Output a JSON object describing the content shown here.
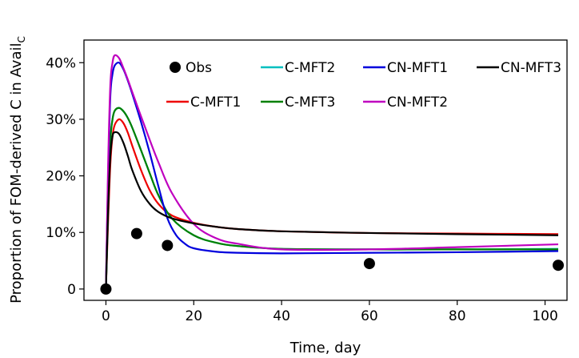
{
  "chart_data": {
    "type": "line",
    "xlabel": "Time, day",
    "ylabel": "Proportion of FOM-derived C in Avail",
    "ylabel_sub": "C",
    "xlim": [
      -5,
      105
    ],
    "ylim": [
      -2,
      44
    ],
    "xticks": [
      0,
      20,
      40,
      60,
      80,
      100
    ],
    "xtick_labels": [
      "0",
      "20",
      "40",
      "60",
      "80",
      "100"
    ],
    "yticks": [
      0,
      10,
      20,
      30,
      40
    ],
    "ytick_labels": [
      "0",
      "10%",
      "20%",
      "30%",
      "40%"
    ],
    "grid": false,
    "legend_position": "top-right",
    "observations": {
      "name": "Obs",
      "color": "#000000",
      "points": [
        [
          0,
          0
        ],
        [
          7,
          9.8
        ],
        [
          14,
          7.7
        ],
        [
          60,
          4.5
        ],
        [
          103,
          4.2
        ]
      ]
    },
    "series": [
      {
        "name": "C-MFT1",
        "color": "#ee0000",
        "points": [
          [
            0,
            0
          ],
          [
            0.5,
            12
          ],
          [
            1,
            22
          ],
          [
            1.5,
            27
          ],
          [
            2,
            29
          ],
          [
            3,
            30
          ],
          [
            4,
            29.3
          ],
          [
            5,
            27.6
          ],
          [
            6,
            25.3
          ],
          [
            8,
            21
          ],
          [
            10,
            17.4
          ],
          [
            12,
            15
          ],
          [
            15,
            13
          ],
          [
            20,
            11.7
          ],
          [
            25,
            11
          ],
          [
            30,
            10.6
          ],
          [
            40,
            10.2
          ],
          [
            60,
            9.9
          ],
          [
            80,
            9.8
          ],
          [
            103,
            9.7
          ]
        ]
      },
      {
        "name": "C-MFT2",
        "color": "#00bfbf",
        "points": [
          [
            0,
            0
          ],
          [
            0.5,
            14
          ],
          [
            1,
            26
          ],
          [
            1.5,
            30
          ],
          [
            2,
            31.5
          ],
          [
            3,
            32
          ],
          [
            4,
            31.4
          ],
          [
            5,
            30.2
          ],
          [
            6,
            28.5
          ],
          [
            8,
            24.5
          ],
          [
            10,
            20.4
          ],
          [
            12,
            16.5
          ],
          [
            15,
            12.5
          ],
          [
            20,
            9.5
          ],
          [
            25,
            8.2
          ],
          [
            30,
            7.6
          ],
          [
            40,
            7.1
          ],
          [
            60,
            7
          ],
          [
            80,
            7
          ],
          [
            103,
            7.1
          ]
        ]
      },
      {
        "name": "C-MFT3",
        "color": "#008000",
        "points": [
          [
            0,
            0
          ],
          [
            0.5,
            14
          ],
          [
            1,
            26
          ],
          [
            1.5,
            30
          ],
          [
            2,
            31.5
          ],
          [
            3,
            32
          ],
          [
            4,
            31.4
          ],
          [
            5,
            30.2
          ],
          [
            6,
            28.5
          ],
          [
            8,
            24.5
          ],
          [
            10,
            20.4
          ],
          [
            12,
            16.5
          ],
          [
            15,
            12.5
          ],
          [
            20,
            9.5
          ],
          [
            25,
            8.2
          ],
          [
            30,
            7.6
          ],
          [
            40,
            7.1
          ],
          [
            60,
            7
          ],
          [
            80,
            7
          ],
          [
            103,
            7
          ]
        ]
      },
      {
        "name": "CN-MFT1",
        "color": "#0000dd",
        "points": [
          [
            0,
            0
          ],
          [
            0.5,
            20
          ],
          [
            1,
            34
          ],
          [
            1.5,
            38
          ],
          [
            2,
            39.5
          ],
          [
            3,
            40
          ],
          [
            4,
            38.8
          ],
          [
            5,
            36.8
          ],
          [
            6,
            34.5
          ],
          [
            8,
            29.5
          ],
          [
            10,
            24
          ],
          [
            12,
            18
          ],
          [
            14,
            12.5
          ],
          [
            16,
            9.5
          ],
          [
            18,
            8
          ],
          [
            20,
            7.2
          ],
          [
            25,
            6.6
          ],
          [
            30,
            6.4
          ],
          [
            40,
            6.3
          ],
          [
            60,
            6.4
          ],
          [
            80,
            6.5
          ],
          [
            103,
            6.7
          ]
        ]
      },
      {
        "name": "CN-MFT2",
        "color": "#bf00bf",
        "points": [
          [
            0,
            0
          ],
          [
            0.5,
            22
          ],
          [
            1,
            36
          ],
          [
            1.5,
            40
          ],
          [
            2,
            41.3
          ],
          [
            3,
            40.8
          ],
          [
            4,
            39
          ],
          [
            5,
            37
          ],
          [
            6,
            34.8
          ],
          [
            8,
            30.5
          ],
          [
            10,
            26.3
          ],
          [
            12,
            22.3
          ],
          [
            15,
            17
          ],
          [
            20,
            11.5
          ],
          [
            25,
            9
          ],
          [
            30,
            8
          ],
          [
            40,
            7
          ],
          [
            60,
            7
          ],
          [
            80,
            7.4
          ],
          [
            103,
            7.9
          ]
        ]
      },
      {
        "name": "CN-MFT3",
        "color": "#000000",
        "points": [
          [
            0,
            0
          ],
          [
            0.5,
            14
          ],
          [
            1,
            23.5
          ],
          [
            1.5,
            27
          ],
          [
            2,
            27.7
          ],
          [
            3,
            27.4
          ],
          [
            4,
            25.8
          ],
          [
            5,
            23.5
          ],
          [
            6,
            21
          ],
          [
            8,
            17.3
          ],
          [
            10,
            15
          ],
          [
            12,
            13.6
          ],
          [
            15,
            12.5
          ],
          [
            20,
            11.6
          ],
          [
            25,
            11
          ],
          [
            30,
            10.6
          ],
          [
            40,
            10.2
          ],
          [
            60,
            9.9
          ],
          [
            80,
            9.7
          ],
          [
            103,
            9.5
          ]
        ]
      }
    ],
    "legend_order": [
      "Obs",
      "C-MFT2",
      "CN-MFT1",
      "CN-MFT3",
      "C-MFT1",
      "C-MFT3",
      "CN-MFT2"
    ]
  }
}
